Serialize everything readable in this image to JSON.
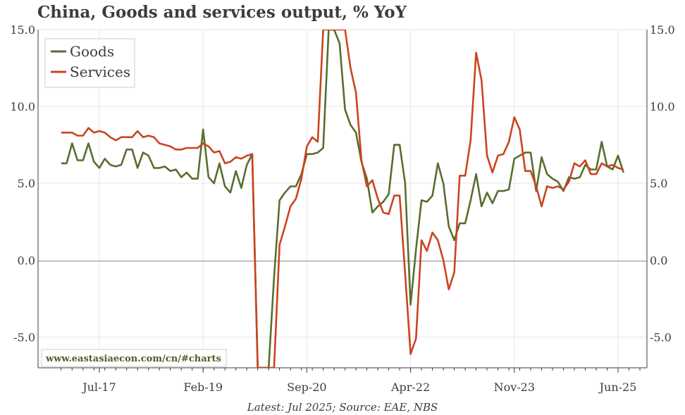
{
  "chart_data": {
    "type": "line",
    "title": "China, Goods and services output, % YoY",
    "ylim": [
      -7.0,
      15.0
    ],
    "y_ticks": [
      15.0,
      10.0,
      5.0,
      0.0,
      -5.0
    ],
    "y_tick_labels": [
      "15.0",
      "10.0",
      "5.0",
      "0.0",
      "-5.0"
    ],
    "x_tick_labels": [
      {
        "label": "Jul-17",
        "date": "2017-07"
      },
      {
        "label": "Feb-19",
        "date": "2019-02"
      },
      {
        "label": "Sep-20",
        "date": "2020-09"
      },
      {
        "label": "Apr-22",
        "date": "2022-04"
      },
      {
        "label": "Nov-23",
        "date": "2023-11"
      },
      {
        "label": "Jun-25",
        "date": "2025-06"
      }
    ],
    "grid": true,
    "legend_position": "top-left",
    "x": [
      "2016-12",
      "2017-01",
      "2017-02",
      "2017-03",
      "2017-04",
      "2017-05",
      "2017-06",
      "2017-07",
      "2017-08",
      "2017-09",
      "2017-10",
      "2017-11",
      "2017-12",
      "2018-01",
      "2018-02",
      "2018-03",
      "2018-04",
      "2018-05",
      "2018-06",
      "2018-07",
      "2018-08",
      "2018-09",
      "2018-10",
      "2018-11",
      "2018-12",
      "2019-01",
      "2019-02",
      "2019-03",
      "2019-04",
      "2019-05",
      "2019-06",
      "2019-07",
      "2019-08",
      "2019-09",
      "2019-10",
      "2019-11",
      "2019-12",
      "2020-01",
      "2020-02",
      "2020-03",
      "2020-04",
      "2020-05",
      "2020-06",
      "2020-07",
      "2020-08",
      "2020-09",
      "2020-10",
      "2020-11",
      "2020-12",
      "2021-01",
      "2021-02",
      "2021-03",
      "2021-04",
      "2021-05",
      "2021-06",
      "2021-07",
      "2021-08",
      "2021-09",
      "2021-10",
      "2021-11",
      "2021-12",
      "2022-01",
      "2022-02",
      "2022-03",
      "2022-04",
      "2022-05",
      "2022-06",
      "2022-07",
      "2022-08",
      "2022-09",
      "2022-10",
      "2022-11",
      "2022-12",
      "2023-01",
      "2023-02",
      "2023-03",
      "2023-04",
      "2023-05",
      "2023-06",
      "2023-07",
      "2023-08",
      "2023-09",
      "2023-10",
      "2023-11",
      "2023-12",
      "2024-01",
      "2024-02",
      "2024-03",
      "2024-04",
      "2024-05",
      "2024-06",
      "2024-07",
      "2024-08",
      "2024-09",
      "2024-10",
      "2024-11",
      "2024-12",
      "2025-01",
      "2025-02",
      "2025-03",
      "2025-04",
      "2025-05",
      "2025-06",
      "2025-07"
    ],
    "series": [
      {
        "name": "Goods",
        "color": "#586e2f",
        "values": [
          6.3,
          6.3,
          7.6,
          6.5,
          6.5,
          7.6,
          6.4,
          6.0,
          6.6,
          6.2,
          6.1,
          6.2,
          7.2,
          7.2,
          6.0,
          7.0,
          6.8,
          6.0,
          6.0,
          6.1,
          5.8,
          5.9,
          5.4,
          5.7,
          5.3,
          5.3,
          8.5,
          5.4,
          5.0,
          6.3,
          4.8,
          4.4,
          5.8,
          4.7,
          6.2,
          6.9,
          -7.0,
          -7.0,
          -7.0,
          -1.1,
          3.9,
          4.4,
          4.8,
          4.8,
          5.6,
          6.9,
          6.9,
          7.0,
          7.3,
          15.0,
          15.0,
          14.1,
          9.8,
          8.8,
          8.3,
          6.4,
          5.3,
          3.1,
          3.5,
          3.8,
          4.3,
          7.5,
          7.5,
          5.0,
          -2.9,
          0.7,
          3.9,
          3.8,
          4.2,
          6.3,
          5.0,
          2.2,
          1.3,
          2.4,
          2.4,
          3.9,
          5.6,
          3.5,
          4.4,
          3.7,
          4.5,
          4.5,
          4.6,
          6.6,
          6.8,
          7.0,
          7.0,
          4.5,
          6.7,
          5.6,
          5.3,
          5.1,
          4.5,
          5.4,
          5.3,
          5.4,
          6.2,
          5.9,
          5.9,
          7.7,
          6.1,
          5.9,
          6.8,
          5.7
        ]
      },
      {
        "name": "Services",
        "color": "#c9451e",
        "values": [
          8.3,
          8.3,
          8.3,
          8.1,
          8.1,
          8.6,
          8.3,
          8.4,
          8.3,
          8.0,
          7.8,
          8.0,
          8.0,
          8.0,
          8.4,
          8.0,
          8.1,
          8.0,
          7.6,
          7.5,
          7.4,
          7.2,
          7.2,
          7.3,
          7.3,
          7.3,
          7.6,
          7.4,
          7.0,
          7.1,
          6.3,
          6.4,
          6.7,
          6.6,
          6.8,
          6.9,
          -7.0,
          -7.0,
          -7.0,
          -7.0,
          1.0,
          2.2,
          3.5,
          4.0,
          5.3,
          7.4,
          8.0,
          7.7,
          15.0,
          15.0,
          15.0,
          15.0,
          15.0,
          12.5,
          10.9,
          6.5,
          4.8,
          5.2,
          4.0,
          3.1,
          3.0,
          4.2,
          4.2,
          -0.9,
          -6.1,
          -5.1,
          1.3,
          0.6,
          1.8,
          1.3,
          0.0,
          -1.9,
          -0.8,
          5.5,
          5.5,
          7.8,
          13.5,
          11.7,
          6.8,
          5.7,
          6.8,
          6.9,
          7.7,
          9.3,
          8.5,
          5.8,
          5.8,
          4.8,
          3.5,
          4.8,
          4.7,
          4.8,
          4.6,
          5.1,
          6.3,
          6.1,
          6.5,
          5.6,
          5.6,
          6.3,
          6.1,
          6.2,
          6.0,
          5.9
        ]
      }
    ],
    "legend_labels": [
      "Goods",
      "Services"
    ],
    "watermark": "www.eastasiaecon.com/cn/#charts",
    "source_note": "Latest: Jul 2025; Source: EAE, NBS"
  }
}
